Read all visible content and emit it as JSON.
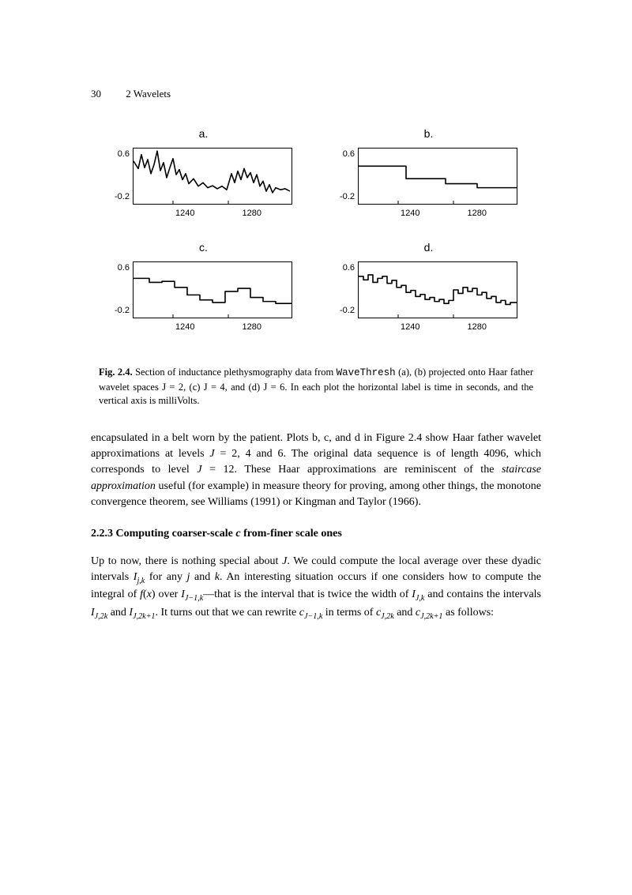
{
  "header": {
    "page_number": "30",
    "running_title": "2 Wavelets"
  },
  "figure": {
    "panels": [
      {
        "label": "a.",
        "type": "line",
        "x_ticks": [
          "1240",
          "1280"
        ],
        "y_ticks": [
          "0.6",
          "-0.2"
        ],
        "ylim": [
          -0.3,
          0.8
        ],
        "xlim": [
          0,
          200
        ],
        "stroke": "#000000",
        "stroke_width": 1.6,
        "background": "#ffffff",
        "points": [
          [
            0,
            0.55
          ],
          [
            6,
            0.4
          ],
          [
            10,
            0.68
          ],
          [
            14,
            0.42
          ],
          [
            18,
            0.58
          ],
          [
            22,
            0.3
          ],
          [
            26,
            0.48
          ],
          [
            30,
            0.75
          ],
          [
            34,
            0.36
          ],
          [
            38,
            0.52
          ],
          [
            42,
            0.22
          ],
          [
            46,
            0.42
          ],
          [
            50,
            0.6
          ],
          [
            54,
            0.28
          ],
          [
            58,
            0.38
          ],
          [
            62,
            0.18
          ],
          [
            66,
            0.3
          ],
          [
            70,
            0.1
          ],
          [
            76,
            0.2
          ],
          [
            82,
            0.05
          ],
          [
            88,
            0.12
          ],
          [
            94,
            0.02
          ],
          [
            100,
            0.06
          ],
          [
            106,
            0.0
          ],
          [
            112,
            0.05
          ],
          [
            118,
            -0.02
          ],
          [
            124,
            0.3
          ],
          [
            128,
            0.12
          ],
          [
            132,
            0.35
          ],
          [
            136,
            0.18
          ],
          [
            140,
            0.4
          ],
          [
            144,
            0.22
          ],
          [
            148,
            0.32
          ],
          [
            152,
            0.12
          ],
          [
            156,
            0.28
          ],
          [
            160,
            0.05
          ],
          [
            164,
            0.15
          ],
          [
            168,
            -0.05
          ],
          [
            172,
            0.08
          ],
          [
            176,
            -0.08
          ],
          [
            180,
            0.02
          ],
          [
            186,
            -0.02
          ],
          [
            192,
            0.0
          ],
          [
            198,
            -0.05
          ]
        ]
      },
      {
        "label": "b.",
        "type": "step",
        "x_ticks": [
          "1240",
          "1280"
        ],
        "y_ticks": [
          "0.6",
          "-0.2"
        ],
        "ylim": [
          -0.3,
          0.8
        ],
        "xlim": [
          0,
          200
        ],
        "stroke": "#000000",
        "stroke_width": 1.6,
        "background": "#ffffff",
        "points": [
          [
            0,
            0.45
          ],
          [
            60,
            0.45
          ],
          [
            60,
            0.2
          ],
          [
            110,
            0.2
          ],
          [
            110,
            0.1
          ],
          [
            150,
            0.1
          ],
          [
            150,
            0.02
          ],
          [
            200,
            0.02
          ]
        ]
      },
      {
        "label": "c.",
        "type": "step",
        "x_ticks": [
          "1240",
          "1280"
        ],
        "y_ticks": [
          "0.6",
          "-0.2"
        ],
        "ylim": [
          -0.3,
          0.8
        ],
        "xlim": [
          0,
          200
        ],
        "stroke": "#000000",
        "stroke_width": 1.6,
        "background": "#ffffff",
        "points": [
          [
            0,
            0.48
          ],
          [
            20,
            0.48
          ],
          [
            20,
            0.4
          ],
          [
            36,
            0.4
          ],
          [
            36,
            0.42
          ],
          [
            52,
            0.42
          ],
          [
            52,
            0.3
          ],
          [
            68,
            0.3
          ],
          [
            68,
            0.15
          ],
          [
            84,
            0.15
          ],
          [
            84,
            0.05
          ],
          [
            100,
            0.05
          ],
          [
            100,
            0.0
          ],
          [
            116,
            0.0
          ],
          [
            116,
            0.22
          ],
          [
            132,
            0.22
          ],
          [
            132,
            0.28
          ],
          [
            148,
            0.28
          ],
          [
            148,
            0.1
          ],
          [
            164,
            0.1
          ],
          [
            164,
            0.02
          ],
          [
            180,
            0.02
          ],
          [
            180,
            -0.02
          ],
          [
            200,
            -0.02
          ]
        ]
      },
      {
        "label": "d.",
        "type": "step",
        "x_ticks": [
          "1240",
          "1280"
        ],
        "y_ticks": [
          "0.6",
          "-0.2"
        ],
        "ylim": [
          -0.3,
          0.8
        ],
        "xlim": [
          0,
          200
        ],
        "stroke": "#000000",
        "stroke_width": 1.6,
        "background": "#ffffff",
        "points": [
          [
            0,
            0.52
          ],
          [
            6,
            0.52
          ],
          [
            6,
            0.45
          ],
          [
            12,
            0.45
          ],
          [
            12,
            0.55
          ],
          [
            18,
            0.55
          ],
          [
            18,
            0.4
          ],
          [
            24,
            0.4
          ],
          [
            24,
            0.48
          ],
          [
            30,
            0.48
          ],
          [
            30,
            0.52
          ],
          [
            36,
            0.52
          ],
          [
            36,
            0.38
          ],
          [
            42,
            0.38
          ],
          [
            42,
            0.44
          ],
          [
            48,
            0.44
          ],
          [
            48,
            0.3
          ],
          [
            54,
            0.3
          ],
          [
            54,
            0.34
          ],
          [
            60,
            0.34
          ],
          [
            60,
            0.2
          ],
          [
            66,
            0.2
          ],
          [
            66,
            0.24
          ],
          [
            72,
            0.24
          ],
          [
            72,
            0.12
          ],
          [
            78,
            0.12
          ],
          [
            78,
            0.16
          ],
          [
            84,
            0.16
          ],
          [
            84,
            0.06
          ],
          [
            90,
            0.06
          ],
          [
            90,
            0.1
          ],
          [
            96,
            0.1
          ],
          [
            96,
            0.02
          ],
          [
            102,
            0.02
          ],
          [
            102,
            0.06
          ],
          [
            108,
            0.06
          ],
          [
            108,
            -0.02
          ],
          [
            114,
            -0.02
          ],
          [
            114,
            0.04
          ],
          [
            120,
            0.04
          ],
          [
            120,
            0.25
          ],
          [
            126,
            0.25
          ],
          [
            126,
            0.18
          ],
          [
            132,
            0.18
          ],
          [
            132,
            0.3
          ],
          [
            138,
            0.3
          ],
          [
            138,
            0.22
          ],
          [
            144,
            0.22
          ],
          [
            144,
            0.28
          ],
          [
            150,
            0.28
          ],
          [
            150,
            0.15
          ],
          [
            156,
            0.15
          ],
          [
            156,
            0.2
          ],
          [
            162,
            0.2
          ],
          [
            162,
            0.08
          ],
          [
            168,
            0.08
          ],
          [
            168,
            0.12
          ],
          [
            174,
            0.12
          ],
          [
            174,
            0.0
          ],
          [
            180,
            0.0
          ],
          [
            180,
            0.04
          ],
          [
            186,
            0.04
          ],
          [
            186,
            -0.04
          ],
          [
            192,
            -0.04
          ],
          [
            192,
            0.0
          ],
          [
            200,
            0.0
          ]
        ]
      }
    ],
    "caption": {
      "fignum": "Fig. 2.4.",
      "pre": " Section of inductance plethysmography data from ",
      "tt": "WaveThresh",
      "post": " (a), (b) projected onto Haar father wavelet spaces J = 2, (c) J = 4, and (d) J = 6. In each plot the horizontal label is time in seconds, and the vertical axis is milliVolts."
    }
  },
  "body_paragraph": "encapsulated in a belt worn by the patient. Plots b, c, and d in Figure 2.4 show Haar father wavelet approximations at levels J = 2, 4 and 6. The original data sequence is of length 4096, which corresponds to level J = 12. These Haar approximations are reminiscent of the staircase approximation useful (for example) in measure theory for proving, among other things, the monotone convergence theorem, see Williams (1991) or Kingman and Taylor (1966).",
  "section": {
    "number": "2.2.3",
    "title": "Computing coarser-scale c from-finer scale ones"
  },
  "section_paragraph_html": "Up to now, there is nothing special about <span class='math-i'>J</span>. We could compute the local average over these dyadic intervals <span class='math-i'>I<sub>j,k</sub></span> for any <span class='math-i'>j</span> and <span class='math-i'>k</span>. An interesting situation occurs if one considers how to compute the integral of <span class='math-i'>f</span>(<span class='math-i'>x</span>) over <span class='math-i'>I<sub>J−1,k</sub></span>—that is the interval that is twice the width of <span class='math-i'>I<sub>J,k</sub></span> and contains the intervals <span class='math-i'>I<sub>J,2k</sub></span> and <span class='math-i'>I<sub>J,2k+1</sub></span>. It turns out that we can rewrite <span class='math-i'>c<sub>J−1,k</sub></span> in terms of <span class='math-i'>c<sub>J,2k</sub></span> and <span class='math-i'>c<sub>J,2k+1</sub></span> as follows:"
}
